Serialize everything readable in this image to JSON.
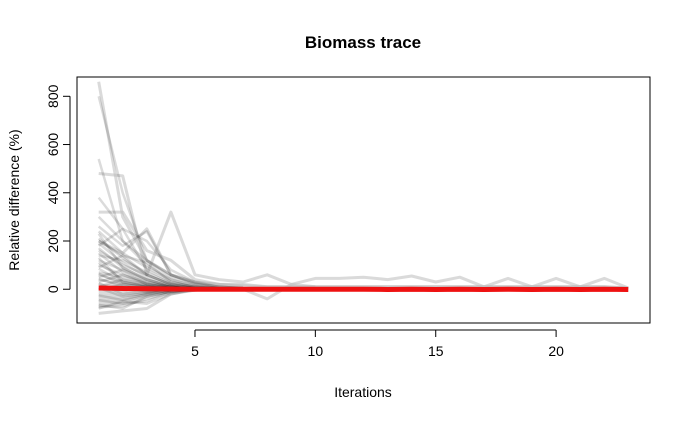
{
  "chart_data": {
    "type": "line",
    "title": "Biomass trace",
    "xlabel": "Iterations",
    "ylabel": "Relative difference (%)",
    "xlim": [
      0.1,
      23.9
    ],
    "ylim": [
      -140,
      880
    ],
    "xticks": [
      5,
      10,
      15,
      20
    ],
    "yticks": [
      0,
      200,
      400,
      600,
      800
    ],
    "grid": false,
    "legend": "none",
    "colors": {
      "trace": "#000000",
      "trace_light": "#bbbbbb",
      "mean": "#ee1111"
    },
    "traces_light": [
      {
        "x": [
          1,
          2,
          3,
          4,
          5,
          6,
          7,
          8,
          9,
          10,
          11,
          12,
          13,
          14,
          15,
          16,
          17,
          18,
          19,
          20,
          21,
          22,
          23
        ],
        "y": [
          860,
          300,
          120,
          60,
          30,
          20,
          15,
          10,
          10,
          10,
          10,
          10,
          10,
          10,
          10,
          10,
          10,
          10,
          10,
          10,
          10,
          10,
          5
        ]
      },
      {
        "x": [
          1,
          2,
          3,
          4,
          5,
          6,
          7,
          8,
          9,
          10,
          11,
          12,
          13,
          14,
          15,
          16,
          17,
          18,
          19,
          20,
          21,
          22,
          23
        ],
        "y": [
          480,
          470,
          60,
          320,
          60,
          40,
          30,
          60,
          20,
          45,
          45,
          50,
          40,
          55,
          30,
          50,
          10,
          45,
          10,
          45,
          10,
          45,
          5
        ]
      },
      {
        "x": [
          1,
          2,
          3,
          4,
          5,
          6,
          7,
          8,
          9,
          10,
          11,
          12,
          13,
          14,
          15,
          16,
          17,
          18,
          19,
          20,
          21,
          22,
          23
        ],
        "y": [
          320,
          320,
          160,
          120,
          40,
          20,
          20,
          10,
          10,
          10,
          10,
          10,
          10,
          10,
          10,
          10,
          10,
          10,
          10,
          10,
          10,
          10,
          5
        ]
      },
      {
        "x": [
          1,
          2,
          3,
          4,
          5,
          6,
          7,
          8,
          9,
          10
        ],
        "y": [
          -100,
          -90,
          -80,
          -20,
          0,
          5,
          0,
          -40,
          20,
          10
        ]
      },
      {
        "x": [
          1,
          2,
          3,
          4,
          5,
          6,
          7
        ],
        "y": [
          200,
          150,
          250,
          60,
          30,
          20,
          10
        ]
      }
    ],
    "traces": [
      {
        "x": [
          1,
          2,
          3,
          4,
          5,
          6,
          7
        ],
        "y": [
          800,
          400,
          120,
          60,
          25,
          10,
          5
        ]
      },
      {
        "x": [
          1,
          2,
          3,
          4,
          5,
          6,
          7
        ],
        "y": [
          540,
          200,
          100,
          40,
          15,
          5,
          0
        ]
      },
      {
        "x": [
          1,
          2,
          3,
          4,
          5,
          6,
          7
        ],
        "y": [
          380,
          250,
          200,
          80,
          30,
          10,
          5
        ]
      },
      {
        "x": [
          1,
          2,
          3,
          4,
          5,
          6,
          7
        ],
        "y": [
          300,
          200,
          120,
          50,
          20,
          10,
          5
        ]
      },
      {
        "x": [
          1,
          2,
          3,
          4,
          5,
          6,
          7
        ],
        "y": [
          260,
          180,
          240,
          60,
          20,
          5,
          0
        ]
      },
      {
        "x": [
          1,
          2,
          3,
          4,
          5,
          6,
          7
        ],
        "y": [
          240,
          150,
          90,
          40,
          10,
          5,
          0
        ]
      },
      {
        "x": [
          1,
          2,
          3,
          4,
          5,
          6,
          7
        ],
        "y": [
          200,
          140,
          110,
          30,
          10,
          0,
          0
        ]
      },
      {
        "x": [
          1,
          2,
          3,
          4,
          5,
          6,
          7
        ],
        "y": [
          180,
          250,
          80,
          30,
          10,
          5,
          0
        ]
      },
      {
        "x": [
          1,
          2,
          3,
          4,
          5,
          6,
          7
        ],
        "y": [
          160,
          100,
          60,
          20,
          5,
          0,
          0
        ]
      },
      {
        "x": [
          1,
          2,
          3,
          4,
          5,
          6,
          7
        ],
        "y": [
          140,
          120,
          70,
          25,
          10,
          0,
          0
        ]
      },
      {
        "x": [
          1,
          2,
          3,
          4,
          5,
          6,
          7
        ],
        "y": [
          120,
          80,
          40,
          15,
          5,
          0,
          0
        ]
      },
      {
        "x": [
          1,
          2,
          3,
          4,
          5,
          6,
          7
        ],
        "y": [
          100,
          60,
          30,
          10,
          5,
          0,
          0
        ]
      },
      {
        "x": [
          1,
          2,
          3,
          4,
          5,
          6,
          7
        ],
        "y": [
          90,
          140,
          60,
          20,
          5,
          0,
          0
        ]
      },
      {
        "x": [
          1,
          2,
          3,
          4,
          5,
          6,
          7
        ],
        "y": [
          70,
          50,
          25,
          10,
          0,
          0,
          0
        ]
      },
      {
        "x": [
          1,
          2,
          3,
          4,
          5,
          6,
          7
        ],
        "y": [
          60,
          30,
          15,
          5,
          0,
          0,
          0
        ]
      },
      {
        "x": [
          1,
          2,
          3,
          4,
          5,
          6,
          7
        ],
        "y": [
          50,
          80,
          30,
          10,
          0,
          0,
          0
        ]
      },
      {
        "x": [
          1,
          2,
          3,
          4,
          5,
          6,
          7
        ],
        "y": [
          40,
          20,
          10,
          5,
          0,
          0,
          0
        ]
      },
      {
        "x": [
          1,
          2,
          3,
          4,
          5,
          6,
          7
        ],
        "y": [
          30,
          60,
          20,
          10,
          0,
          0,
          0
        ]
      },
      {
        "x": [
          1,
          2,
          3,
          4,
          5,
          6,
          7
        ],
        "y": [
          20,
          10,
          5,
          0,
          0,
          0,
          0
        ]
      },
      {
        "x": [
          1,
          2,
          3,
          4,
          5,
          6,
          7
        ],
        "y": [
          10,
          40,
          15,
          5,
          0,
          0,
          0
        ]
      },
      {
        "x": [
          1,
          2,
          3,
          4,
          5,
          6,
          7
        ],
        "y": [
          0,
          20,
          10,
          5,
          0,
          0,
          0
        ]
      },
      {
        "x": [
          1,
          2,
          3,
          4,
          5,
          6,
          7
        ],
        "y": [
          -10,
          0,
          5,
          0,
          0,
          0,
          0
        ]
      },
      {
        "x": [
          1,
          2,
          3,
          4,
          5,
          6,
          7
        ],
        "y": [
          -20,
          -10,
          0,
          0,
          0,
          0,
          0
        ]
      },
      {
        "x": [
          1,
          2,
          3,
          4,
          5,
          6,
          7
        ],
        "y": [
          -30,
          -20,
          -10,
          0,
          0,
          0,
          0
        ]
      },
      {
        "x": [
          1,
          2,
          3,
          4,
          5,
          6,
          7
        ],
        "y": [
          -40,
          -30,
          -15,
          -5,
          0,
          0,
          0
        ]
      },
      {
        "x": [
          1,
          2,
          3,
          4,
          5,
          6,
          7
        ],
        "y": [
          -50,
          -40,
          -20,
          -5,
          0,
          0,
          0
        ]
      },
      {
        "x": [
          1,
          2,
          3,
          4,
          5,
          6,
          7
        ],
        "y": [
          -60,
          -50,
          -25,
          -10,
          0,
          0,
          0
        ]
      },
      {
        "x": [
          1,
          2,
          3,
          4,
          5,
          6,
          7
        ],
        "y": [
          -70,
          -60,
          -30,
          -10,
          -5,
          0,
          0
        ]
      },
      {
        "x": [
          1,
          2,
          3,
          4,
          5,
          6,
          7
        ],
        "y": [
          -75,
          -70,
          -40,
          -15,
          -5,
          0,
          0
        ]
      },
      {
        "x": [
          1,
          2,
          3,
          4,
          5,
          6,
          7
        ],
        "y": [
          -80,
          -50,
          -60,
          -20,
          -5,
          0,
          0
        ]
      },
      {
        "x": [
          1,
          2,
          3,
          4,
          5,
          6,
          7
        ],
        "y": [
          -65,
          -80,
          -30,
          -10,
          0,
          0,
          0
        ]
      },
      {
        "x": [
          1,
          2,
          3,
          4,
          5,
          6,
          7
        ],
        "y": [
          -45,
          -60,
          -50,
          -10,
          0,
          0,
          0
        ]
      },
      {
        "x": [
          1,
          2,
          3,
          4,
          5,
          6,
          7
        ],
        "y": [
          -25,
          -45,
          -20,
          -5,
          0,
          0,
          0
        ]
      },
      {
        "x": [
          1,
          2,
          3,
          4,
          5,
          6,
          7
        ],
        "y": [
          5,
          -30,
          -15,
          0,
          0,
          0,
          0
        ]
      },
      {
        "x": [
          1,
          2,
          3,
          4,
          5,
          6,
          7
        ],
        "y": [
          25,
          -20,
          -5,
          0,
          0,
          0,
          0
        ]
      },
      {
        "x": [
          1,
          2,
          3,
          4,
          5,
          6,
          7
        ],
        "y": [
          45,
          10,
          -10,
          0,
          0,
          0,
          0
        ]
      },
      {
        "x": [
          1,
          2,
          3,
          4,
          5,
          6,
          7
        ],
        "y": [
          65,
          20,
          0,
          0,
          0,
          0,
          0
        ]
      },
      {
        "x": [
          1,
          2,
          3,
          4,
          5,
          6,
          7
        ],
        "y": [
          85,
          30,
          10,
          0,
          0,
          0,
          0
        ]
      },
      {
        "x": [
          1,
          2,
          3,
          4,
          5,
          6,
          7
        ],
        "y": [
          110,
          40,
          20,
          5,
          0,
          0,
          0
        ]
      },
      {
        "x": [
          1,
          2,
          3,
          4,
          5,
          6,
          7
        ],
        "y": [
          130,
          30,
          10,
          0,
          0,
          0,
          0
        ]
      },
      {
        "x": [
          1,
          2,
          3,
          4,
          5,
          6,
          7
        ],
        "y": [
          150,
          70,
          20,
          5,
          0,
          0,
          0
        ]
      },
      {
        "x": [
          1,
          2,
          3,
          4,
          5,
          6,
          7
        ],
        "y": [
          170,
          90,
          40,
          10,
          0,
          0,
          0
        ]
      },
      {
        "x": [
          1,
          2,
          3,
          4,
          5,
          6,
          7
        ],
        "y": [
          190,
          110,
          50,
          15,
          5,
          0,
          0
        ]
      },
      {
        "x": [
          1,
          2,
          3,
          4,
          5,
          6,
          7
        ],
        "y": [
          210,
          130,
          60,
          20,
          5,
          0,
          0
        ]
      },
      {
        "x": [
          1,
          2,
          3,
          4,
          5,
          6,
          7
        ],
        "y": [
          230,
          90,
          40,
          10,
          0,
          0,
          0
        ]
      }
    ],
    "mean_line": {
      "x": [
        1,
        2,
        3,
        4,
        5,
        6,
        7,
        8,
        9,
        10,
        11,
        12,
        13,
        14,
        15,
        16,
        17,
        18,
        19,
        20,
        21,
        22,
        23
      ],
      "y": [
        5,
        3,
        2,
        1,
        0,
        0,
        0,
        0,
        0,
        0,
        0,
        0,
        -1,
        0,
        -1,
        0,
        -1,
        0,
        -1,
        0,
        -1,
        0,
        -1
      ]
    }
  }
}
